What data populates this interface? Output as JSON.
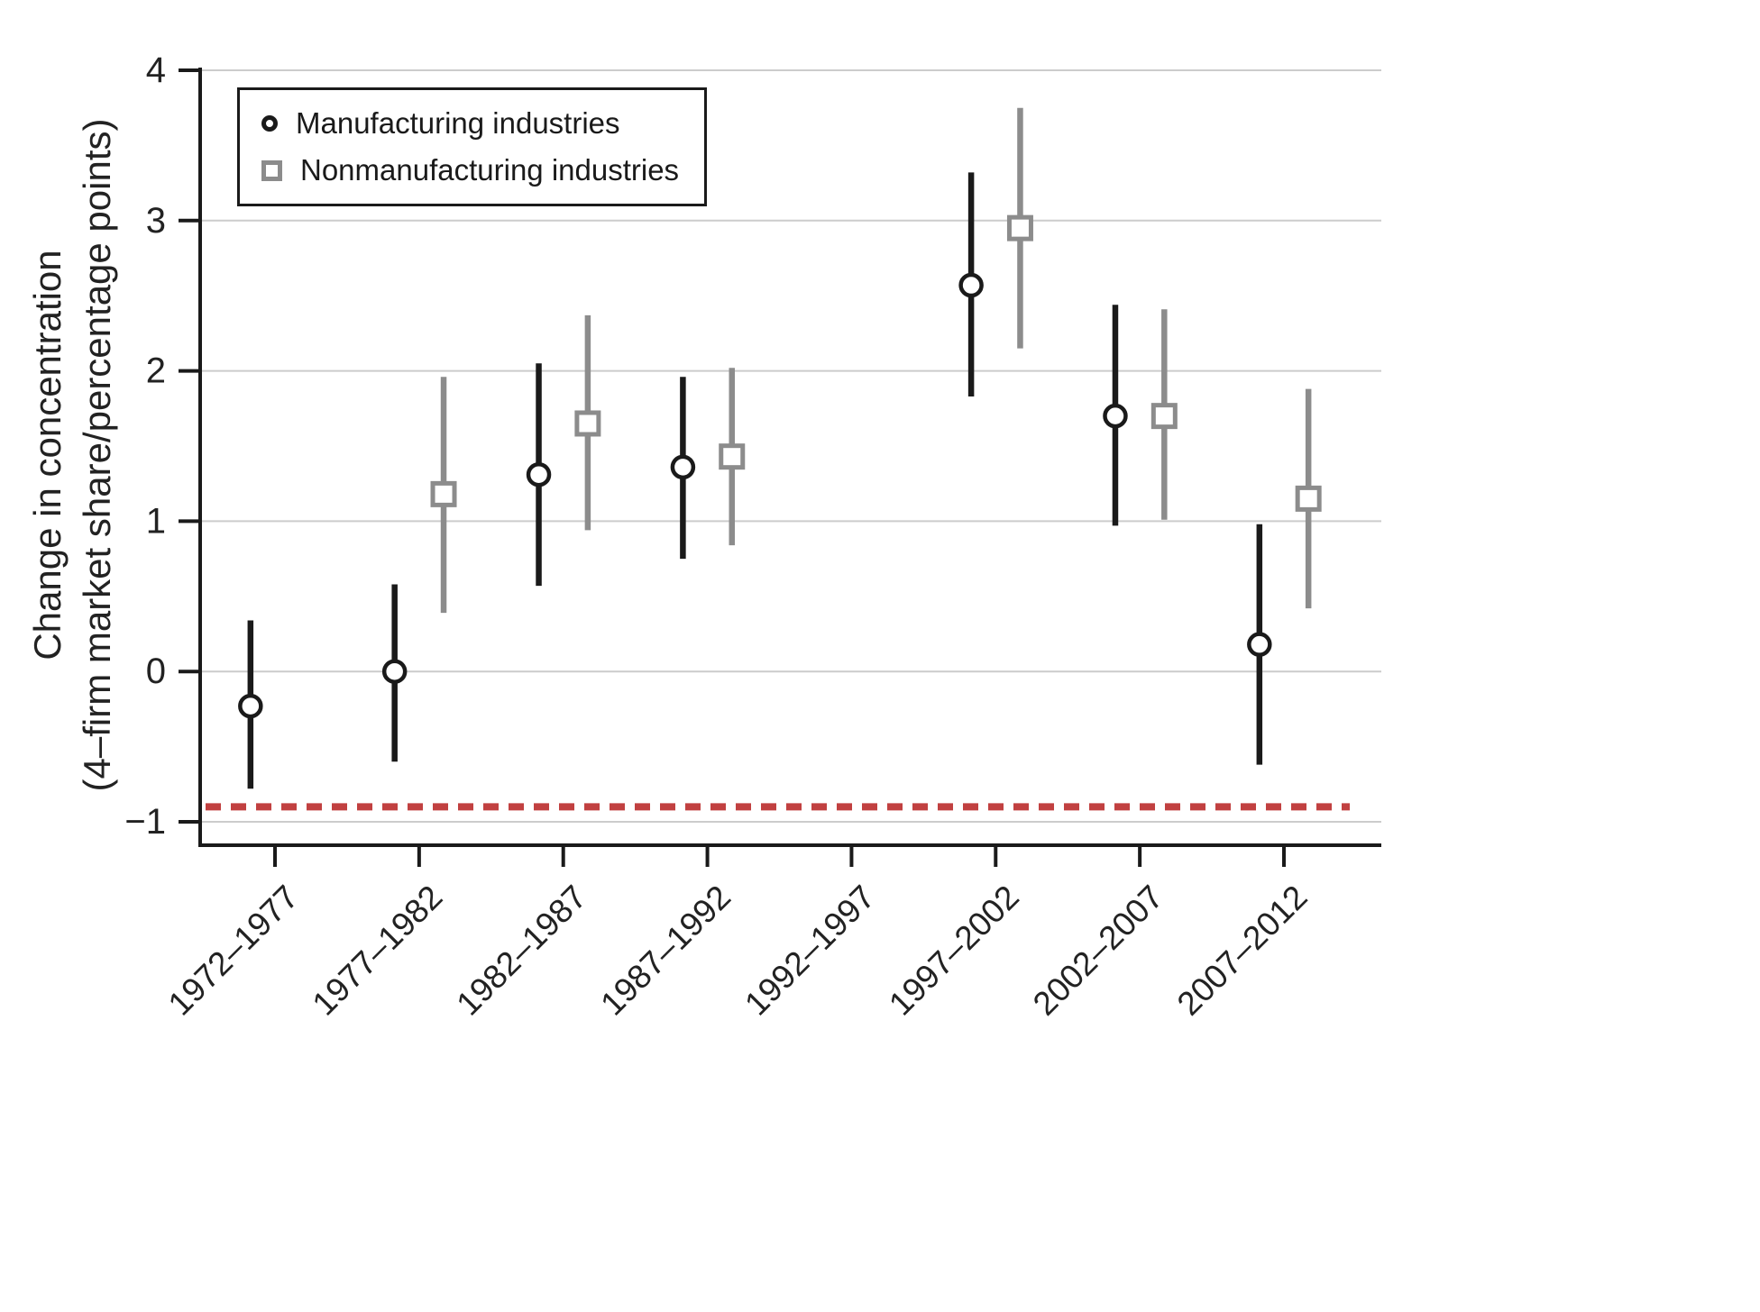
{
  "chart_data": {
    "type": "scatter",
    "subtype": "point-estimates-with-confidence-intervals",
    "title": "",
    "ylabel_line1": "Change in concentration",
    "ylabel_line2": "(4–firm market share/percentage points)",
    "xlabel": "",
    "categories": [
      "1972–1977",
      "1977–1982",
      "1982–1987",
      "1987–1992",
      "1992–1997",
      "1997–2002",
      "2002–2007",
      "2007–2012"
    ],
    "ylim": [
      -1,
      4
    ],
    "grid": "horizontal",
    "yticks": [
      {
        "value": -1,
        "label": "−1"
      },
      {
        "value": 0,
        "label": "0"
      },
      {
        "value": 1,
        "label": "1"
      },
      {
        "value": 2,
        "label": "2"
      },
      {
        "value": 3,
        "label": "3"
      },
      {
        "value": 4,
        "label": "4"
      }
    ],
    "colors": {
      "axis": "#1a1a1a",
      "grid": "#cccccc",
      "text": "#222222",
      "background": "#ffffff"
    },
    "reference_line": {
      "y": -0.9,
      "color": "#c14040",
      "style": "dashed"
    },
    "legend": {
      "position": "top-left",
      "border": true
    },
    "series": [
      {
        "name": "Manufacturing industries",
        "marker": "circle",
        "color": "#1a1a1a",
        "offset": -0.17,
        "points": [
          {
            "category": "1972–1977",
            "value": -0.23,
            "lo": -0.78,
            "hi": 0.34
          },
          {
            "category": "1977–1982",
            "value": 0.0,
            "lo": -0.6,
            "hi": 0.58
          },
          {
            "category": "1982–1987",
            "value": 1.31,
            "lo": 0.57,
            "hi": 2.05
          },
          {
            "category": "1987–1992",
            "value": 1.36,
            "lo": 0.75,
            "hi": 1.96
          },
          {
            "category": "1997–2002",
            "value": 2.57,
            "lo": 1.83,
            "hi": 3.32
          },
          {
            "category": "2002–2007",
            "value": 1.7,
            "lo": 0.97,
            "hi": 2.44
          },
          {
            "category": "2007–2012",
            "value": 0.18,
            "lo": -0.62,
            "hi": 0.98
          }
        ]
      },
      {
        "name": "Nonmanufacturing industries",
        "marker": "square",
        "color": "#8c8c8c",
        "offset": 0.17,
        "points": [
          {
            "category": "1977–1982",
            "value": 1.18,
            "lo": 0.39,
            "hi": 1.96
          },
          {
            "category": "1982–1987",
            "value": 1.65,
            "lo": 0.94,
            "hi": 2.37
          },
          {
            "category": "1987–1992",
            "value": 1.43,
            "lo": 0.84,
            "hi": 2.02
          },
          {
            "category": "1997–2002",
            "value": 2.95,
            "lo": 2.15,
            "hi": 3.75
          },
          {
            "category": "2002–2007",
            "value": 1.7,
            "lo": 1.01,
            "hi": 2.41
          },
          {
            "category": "2007–2012",
            "value": 1.15,
            "lo": 0.42,
            "hi": 1.88
          }
        ]
      }
    ]
  }
}
